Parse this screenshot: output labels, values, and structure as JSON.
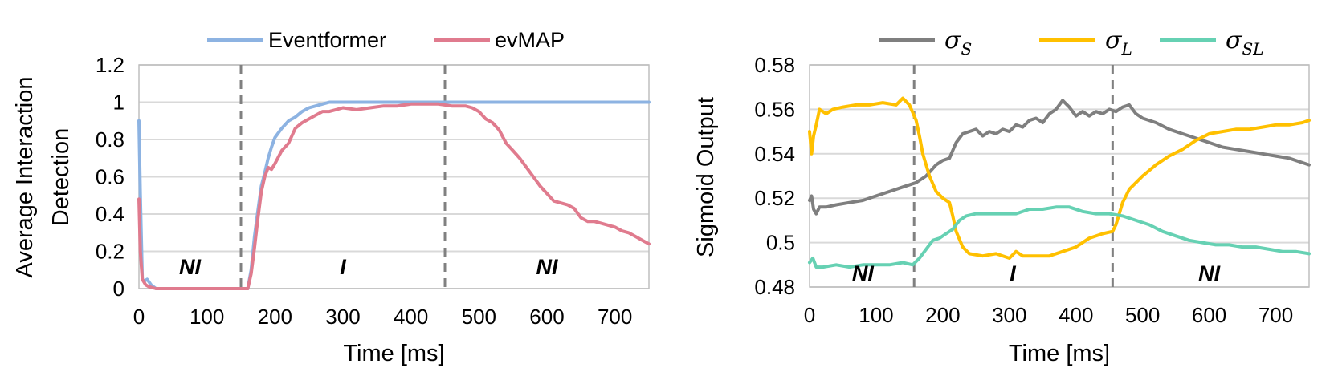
{
  "chart_data": [
    {
      "type": "line",
      "xlabel": "Time [ms]",
      "ylabel": [
        "Average Interaction",
        "Detection"
      ],
      "xlim": [
        0,
        750
      ],
      "ylim": [
        0,
        1.2
      ],
      "xticks": [
        "0",
        "100",
        "200",
        "300",
        "400",
        "500",
        "600",
        "700"
      ],
      "xtick_values": [
        0,
        100,
        200,
        300,
        400,
        500,
        600,
        700
      ],
      "yticks": [
        "0",
        "0.2",
        "0.4",
        "0.6",
        "0.8",
        "1",
        "1.2"
      ],
      "ytick_values": [
        0,
        0.2,
        0.4,
        0.6,
        0.8,
        1.0,
        1.2
      ],
      "grid": "horizontal",
      "legend": "top-center",
      "dividers": [
        150,
        450
      ],
      "regions": [
        {
          "label": "NI",
          "x": 75,
          "y": 0.12
        },
        {
          "label": "I",
          "x": 300,
          "y": 0.12
        },
        {
          "label": "NI",
          "x": 600,
          "y": 0.12
        }
      ],
      "series": [
        {
          "name": "Eventformer",
          "color": "#8db3e2",
          "points": [
            [
              0,
              0.9
            ],
            [
              2,
              0.5
            ],
            [
              5,
              0.05
            ],
            [
              8,
              0.04
            ],
            [
              12,
              0.05
            ],
            [
              18,
              0.02
            ],
            [
              25,
              0.0
            ],
            [
              160,
              0.0
            ],
            [
              165,
              0.1
            ],
            [
              170,
              0.28
            ],
            [
              175,
              0.42
            ],
            [
              180,
              0.55
            ],
            [
              185,
              0.62
            ],
            [
              190,
              0.7
            ],
            [
              195,
              0.76
            ],
            [
              200,
              0.81
            ],
            [
              210,
              0.86
            ],
            [
              220,
              0.9
            ],
            [
              230,
              0.92
            ],
            [
              240,
              0.95
            ],
            [
              250,
              0.97
            ],
            [
              260,
              0.98
            ],
            [
              270,
              0.99
            ],
            [
              280,
              1.0
            ],
            [
              750,
              1.0
            ]
          ]
        },
        {
          "name": "evMAP",
          "color": "#e07b8e",
          "points": [
            [
              0,
              0.48
            ],
            [
              2,
              0.2
            ],
            [
              5,
              0.05
            ],
            [
              10,
              0.02
            ],
            [
              15,
              0.01
            ],
            [
              25,
              0.0
            ],
            [
              160,
              0.0
            ],
            [
              165,
              0.08
            ],
            [
              170,
              0.22
            ],
            [
              175,
              0.38
            ],
            [
              180,
              0.52
            ],
            [
              185,
              0.6
            ],
            [
              190,
              0.65
            ],
            [
              195,
              0.64
            ],
            [
              200,
              0.67
            ],
            [
              210,
              0.74
            ],
            [
              220,
              0.78
            ],
            [
              230,
              0.86
            ],
            [
              240,
              0.89
            ],
            [
              250,
              0.91
            ],
            [
              260,
              0.93
            ],
            [
              270,
              0.95
            ],
            [
              280,
              0.95
            ],
            [
              290,
              0.96
            ],
            [
              300,
              0.97
            ],
            [
              320,
              0.96
            ],
            [
              340,
              0.97
            ],
            [
              360,
              0.98
            ],
            [
              380,
              0.98
            ],
            [
              400,
              0.99
            ],
            [
              420,
              0.99
            ],
            [
              440,
              0.99
            ],
            [
              460,
              0.98
            ],
            [
              480,
              0.98
            ],
            [
              490,
              0.97
            ],
            [
              500,
              0.95
            ],
            [
              510,
              0.91
            ],
            [
              520,
              0.89
            ],
            [
              530,
              0.85
            ],
            [
              540,
              0.78
            ],
            [
              550,
              0.74
            ],
            [
              560,
              0.7
            ],
            [
              570,
              0.65
            ],
            [
              580,
              0.6
            ],
            [
              590,
              0.55
            ],
            [
              600,
              0.51
            ],
            [
              610,
              0.47
            ],
            [
              620,
              0.46
            ],
            [
              630,
              0.45
            ],
            [
              640,
              0.43
            ],
            [
              650,
              0.38
            ],
            [
              660,
              0.36
            ],
            [
              670,
              0.36
            ],
            [
              680,
              0.35
            ],
            [
              690,
              0.34
            ],
            [
              700,
              0.33
            ],
            [
              710,
              0.31
            ],
            [
              720,
              0.3
            ],
            [
              730,
              0.28
            ],
            [
              740,
              0.26
            ],
            [
              750,
              0.24
            ]
          ]
        }
      ]
    },
    {
      "type": "line",
      "xlabel": "Time [ms]",
      "ylabel": [
        "Sigmoid Output"
      ],
      "xlim": [
        0,
        750
      ],
      "ylim": [
        0.48,
        0.58
      ],
      "xticks": [
        "0",
        "100",
        "200",
        "300",
        "400",
        "500",
        "600",
        "700"
      ],
      "xtick_values": [
        0,
        100,
        200,
        300,
        400,
        500,
        600,
        700
      ],
      "yticks": [
        "0.48",
        "0.5",
        "0.52",
        "0.54",
        "0.56",
        "0.58"
      ],
      "ytick_values": [
        0.48,
        0.5,
        0.52,
        0.54,
        0.56,
        0.58
      ],
      "grid": "horizontal",
      "legend": "top-center",
      "dividers": [
        157,
        455
      ],
      "regions": [
        {
          "label": "NI",
          "x": 80,
          "y": 0.4865
        },
        {
          "label": "I",
          "x": 305,
          "y": 0.4865
        },
        {
          "label": "NI",
          "x": 600,
          "y": 0.4865
        }
      ],
      "series": [
        {
          "name": "σ",
          "subscript": "S",
          "color": "#7f7f7f",
          "points": [
            [
              0,
              0.519
            ],
            [
              3,
              0.521
            ],
            [
              6,
              0.515
            ],
            [
              10,
              0.513
            ],
            [
              15,
              0.516
            ],
            [
              25,
              0.516
            ],
            [
              40,
              0.517
            ],
            [
              60,
              0.518
            ],
            [
              80,
              0.519
            ],
            [
              100,
              0.521
            ],
            [
              120,
              0.523
            ],
            [
              140,
              0.525
            ],
            [
              160,
              0.527
            ],
            [
              175,
              0.53
            ],
            [
              190,
              0.535
            ],
            [
              200,
              0.537
            ],
            [
              210,
              0.538
            ],
            [
              220,
              0.545
            ],
            [
              230,
              0.549
            ],
            [
              240,
              0.55
            ],
            [
              250,
              0.551
            ],
            [
              260,
              0.548
            ],
            [
              270,
              0.55
            ],
            [
              280,
              0.549
            ],
            [
              290,
              0.551
            ],
            [
              300,
              0.55
            ],
            [
              310,
              0.553
            ],
            [
              320,
              0.552
            ],
            [
              330,
              0.555
            ],
            [
              340,
              0.556
            ],
            [
              350,
              0.554
            ],
            [
              360,
              0.558
            ],
            [
              370,
              0.56
            ],
            [
              380,
              0.564
            ],
            [
              390,
              0.561
            ],
            [
              400,
              0.557
            ],
            [
              410,
              0.559
            ],
            [
              420,
              0.557
            ],
            [
              430,
              0.559
            ],
            [
              440,
              0.558
            ],
            [
              450,
              0.56
            ],
            [
              460,
              0.559
            ],
            [
              470,
              0.561
            ],
            [
              480,
              0.562
            ],
            [
              490,
              0.558
            ],
            [
              500,
              0.556
            ],
            [
              520,
              0.554
            ],
            [
              540,
              0.551
            ],
            [
              560,
              0.549
            ],
            [
              580,
              0.547
            ],
            [
              600,
              0.545
            ],
            [
              620,
              0.543
            ],
            [
              640,
              0.542
            ],
            [
              660,
              0.541
            ],
            [
              680,
              0.54
            ],
            [
              700,
              0.539
            ],
            [
              720,
              0.538
            ],
            [
              740,
              0.536
            ],
            [
              750,
              0.535
            ]
          ]
        },
        {
          "name": "σ",
          "subscript": "L",
          "color": "#ffc000",
          "points": [
            [
              0,
              0.55
            ],
            [
              3,
              0.54
            ],
            [
              6,
              0.548
            ],
            [
              10,
              0.553
            ],
            [
              15,
              0.56
            ],
            [
              25,
              0.558
            ],
            [
              35,
              0.56
            ],
            [
              50,
              0.561
            ],
            [
              70,
              0.562
            ],
            [
              90,
              0.562
            ],
            [
              110,
              0.563
            ],
            [
              130,
              0.562
            ],
            [
              140,
              0.565
            ],
            [
              150,
              0.562
            ],
            [
              160,
              0.555
            ],
            [
              165,
              0.548
            ],
            [
              170,
              0.54
            ],
            [
              175,
              0.535
            ],
            [
              180,
              0.53
            ],
            [
              190,
              0.523
            ],
            [
              200,
              0.52
            ],
            [
              210,
              0.518
            ],
            [
              215,
              0.512
            ],
            [
              220,
              0.505
            ],
            [
              230,
              0.498
            ],
            [
              240,
              0.495
            ],
            [
              260,
              0.494
            ],
            [
              280,
              0.495
            ],
            [
              300,
              0.493
            ],
            [
              310,
              0.496
            ],
            [
              320,
              0.494
            ],
            [
              340,
              0.494
            ],
            [
              360,
              0.494
            ],
            [
              380,
              0.496
            ],
            [
              400,
              0.498
            ],
            [
              420,
              0.502
            ],
            [
              440,
              0.504
            ],
            [
              455,
              0.505
            ],
            [
              460,
              0.508
            ],
            [
              470,
              0.518
            ],
            [
              480,
              0.524
            ],
            [
              490,
              0.527
            ],
            [
              500,
              0.53
            ],
            [
              520,
              0.535
            ],
            [
              540,
              0.539
            ],
            [
              560,
              0.542
            ],
            [
              580,
              0.546
            ],
            [
              600,
              0.549
            ],
            [
              620,
              0.55
            ],
            [
              640,
              0.551
            ],
            [
              660,
              0.551
            ],
            [
              680,
              0.552
            ],
            [
              700,
              0.553
            ],
            [
              720,
              0.553
            ],
            [
              740,
              0.554
            ],
            [
              750,
              0.555
            ]
          ]
        },
        {
          "name": "σ",
          "subscript": "SL",
          "color": "#66d1b3",
          "points": [
            [
              0,
              0.491
            ],
            [
              5,
              0.493
            ],
            [
              10,
              0.489
            ],
            [
              20,
              0.489
            ],
            [
              40,
              0.49
            ],
            [
              60,
              0.489
            ],
            [
              80,
              0.49
            ],
            [
              100,
              0.49
            ],
            [
              120,
              0.49
            ],
            [
              140,
              0.491
            ],
            [
              155,
              0.49
            ],
            [
              165,
              0.493
            ],
            [
              175,
              0.497
            ],
            [
              185,
              0.501
            ],
            [
              195,
              0.502
            ],
            [
              205,
              0.504
            ],
            [
              215,
              0.506
            ],
            [
              225,
              0.51
            ],
            [
              235,
              0.512
            ],
            [
              250,
              0.513
            ],
            [
              270,
              0.513
            ],
            [
              290,
              0.513
            ],
            [
              310,
              0.513
            ],
            [
              330,
              0.515
            ],
            [
              350,
              0.515
            ],
            [
              370,
              0.516
            ],
            [
              390,
              0.516
            ],
            [
              410,
              0.514
            ],
            [
              430,
              0.513
            ],
            [
              450,
              0.513
            ],
            [
              470,
              0.512
            ],
            [
              490,
              0.51
            ],
            [
              510,
              0.508
            ],
            [
              530,
              0.505
            ],
            [
              550,
              0.503
            ],
            [
              570,
              0.501
            ],
            [
              590,
              0.5
            ],
            [
              610,
              0.499
            ],
            [
              630,
              0.499
            ],
            [
              650,
              0.498
            ],
            [
              670,
              0.498
            ],
            [
              690,
              0.497
            ],
            [
              710,
              0.496
            ],
            [
              730,
              0.496
            ],
            [
              750,
              0.495
            ]
          ]
        }
      ]
    }
  ]
}
